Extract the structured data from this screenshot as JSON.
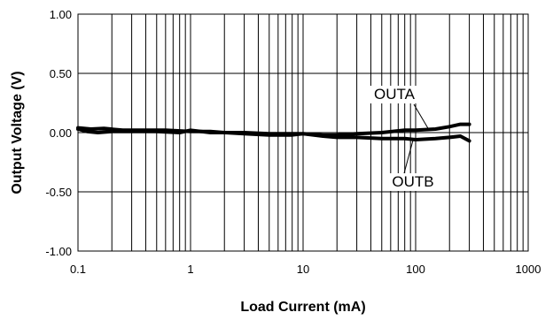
{
  "chart_data": {
    "type": "line",
    "title": "",
    "xlabel": "Load Current (mA)",
    "ylabel": "Output Voltage (V)",
    "x_scale": "log",
    "xlim": [
      0.1,
      1000
    ],
    "ylim": [
      -1.0,
      1.0
    ],
    "grid": true,
    "x_ticks": [
      "0.1",
      "1",
      "10",
      "100",
      "1000"
    ],
    "x_tick_values": [
      0.1,
      1,
      10,
      100,
      1000
    ],
    "y_ticks": [
      "1.00",
      "0.50",
      "0.00",
      "-0.50",
      "-1.00"
    ],
    "y_tick_values": [
      1.0,
      0.5,
      0.0,
      -0.5,
      -1.0
    ],
    "series": [
      {
        "name": "OUTA",
        "color": "#000000",
        "x": [
          0.1,
          0.13,
          0.17,
          0.25,
          0.4,
          0.6,
          1,
          1.5,
          2,
          3,
          5,
          8,
          10,
          15,
          20,
          30,
          50,
          80,
          100,
          150,
          200,
          250,
          300
        ],
        "y": [
          0.04,
          0.03,
          0.035,
          0.02,
          0.02,
          0.02,
          0.01,
          0.01,
          0.0,
          0.0,
          -0.01,
          -0.01,
          -0.01,
          -0.02,
          -0.02,
          -0.01,
          0.0,
          0.02,
          0.02,
          0.03,
          0.05,
          0.07,
          0.07
        ]
      },
      {
        "name": "OUTB",
        "color": "#000000",
        "x": [
          0.1,
          0.12,
          0.15,
          0.2,
          0.3,
          0.5,
          0.8,
          1,
          1.5,
          2,
          3,
          5,
          8,
          10,
          15,
          20,
          30,
          50,
          80,
          100,
          150,
          200,
          250,
          300
        ],
        "y": [
          0.03,
          0.01,
          0.0,
          0.01,
          0.01,
          0.01,
          0.0,
          0.02,
          0.0,
          0.0,
          -0.01,
          -0.02,
          -0.02,
          -0.01,
          -0.03,
          -0.04,
          -0.04,
          -0.05,
          -0.05,
          -0.06,
          -0.05,
          -0.04,
          -0.03,
          -0.07
        ]
      }
    ]
  }
}
